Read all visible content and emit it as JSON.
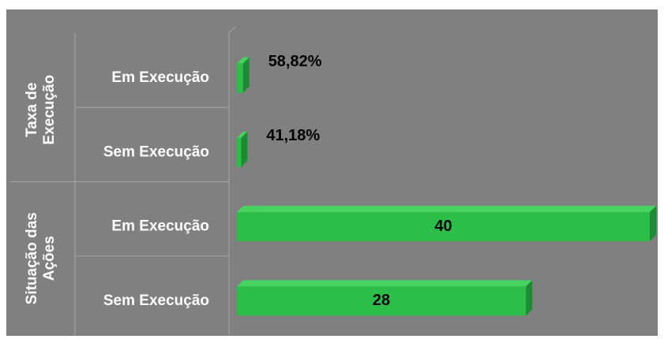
{
  "chart_data": {
    "type": "bar",
    "orientation": "horizontal",
    "categories": [
      "Em Execução",
      "Sem Execução",
      "Em Execução",
      "Sem Execução"
    ],
    "groups": [
      {
        "lines": [
          "Taxa de",
          "Execução"
        ],
        "size": 2
      },
      {
        "lines": [
          "Situação das",
          "Ações"
        ],
        "size": 2
      }
    ],
    "values": [
      0.5882,
      0.4118,
      40,
      28
    ],
    "value_labels": [
      "58,82%",
      "41,18%",
      "40",
      "28"
    ],
    "color": "#2dbe4a",
    "xlim": [
      0,
      40
    ]
  }
}
